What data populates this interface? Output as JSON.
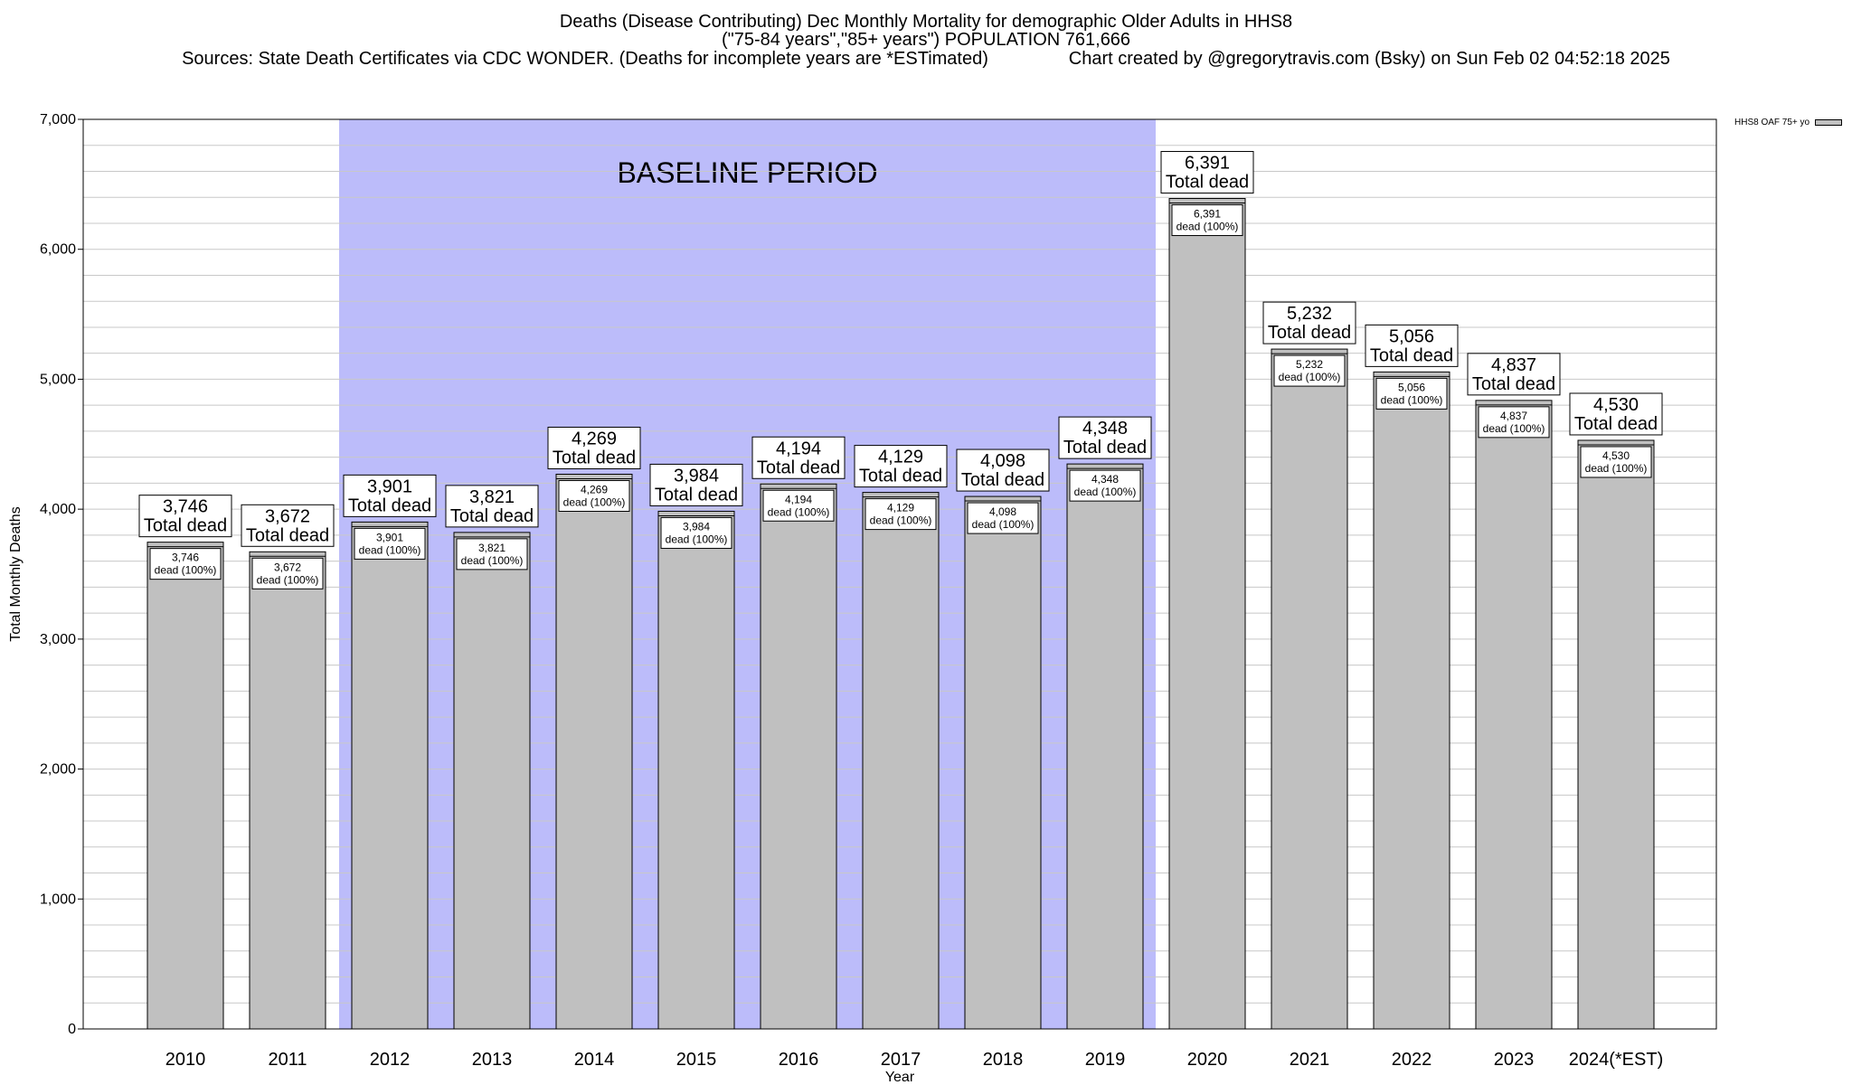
{
  "chart_data": {
    "type": "bar",
    "title": "Deaths (Disease Contributing) Dec Monthly Mortality for demographic Older Adults in HHS8",
    "subtitle": "(\"75-84 years\",\"85+ years\") POPULATION 761,666",
    "sources": "Sources: State Death Certificates via CDC WONDER. (Deaths for incomplete years are *ESTimated)",
    "credit": "Chart created by @gregorytravis.com (Bsky) on Sun Feb 02 04:52:18 2025",
    "xlabel": "Year",
    "ylabel": "Total Monthly Deaths",
    "ylim": [
      0,
      7000
    ],
    "yticks": [
      0,
      1000,
      2000,
      3000,
      4000,
      5000,
      6000,
      7000
    ],
    "ytick_labels": [
      "0",
      "1,000",
      "2,000",
      "3,000",
      "4,000",
      "5,000",
      "6,000",
      "7,000"
    ],
    "categories": [
      "2010",
      "2011",
      "2012",
      "2013",
      "2014",
      "2015",
      "2016",
      "2017",
      "2018",
      "2019",
      "2020",
      "2021",
      "2022",
      "2023",
      "2024(*EST)"
    ],
    "series": [
      {
        "name": "HHS8 OAF 75+ yo",
        "values": [
          3746,
          3672,
          3901,
          3821,
          4269,
          3984,
          4194,
          4129,
          4098,
          4348,
          6391,
          5232,
          5056,
          4837,
          4530
        ]
      }
    ],
    "value_labels": [
      "3,746",
      "3,672",
      "3,901",
      "3,821",
      "4,269",
      "3,984",
      "4,194",
      "4,129",
      "4,098",
      "4,348",
      "6,391",
      "5,232",
      "5,056",
      "4,837",
      "4,530"
    ],
    "total_label_text": "Total dead",
    "inner_label_text": "dead (100%)",
    "baseline": {
      "label": "BASELINE PERIOD",
      "start": "2012",
      "end": "2019",
      "color": "#bcbcfa"
    },
    "bar_color": "#c0c0c0",
    "grid": true,
    "legend_position": "top-right"
  }
}
